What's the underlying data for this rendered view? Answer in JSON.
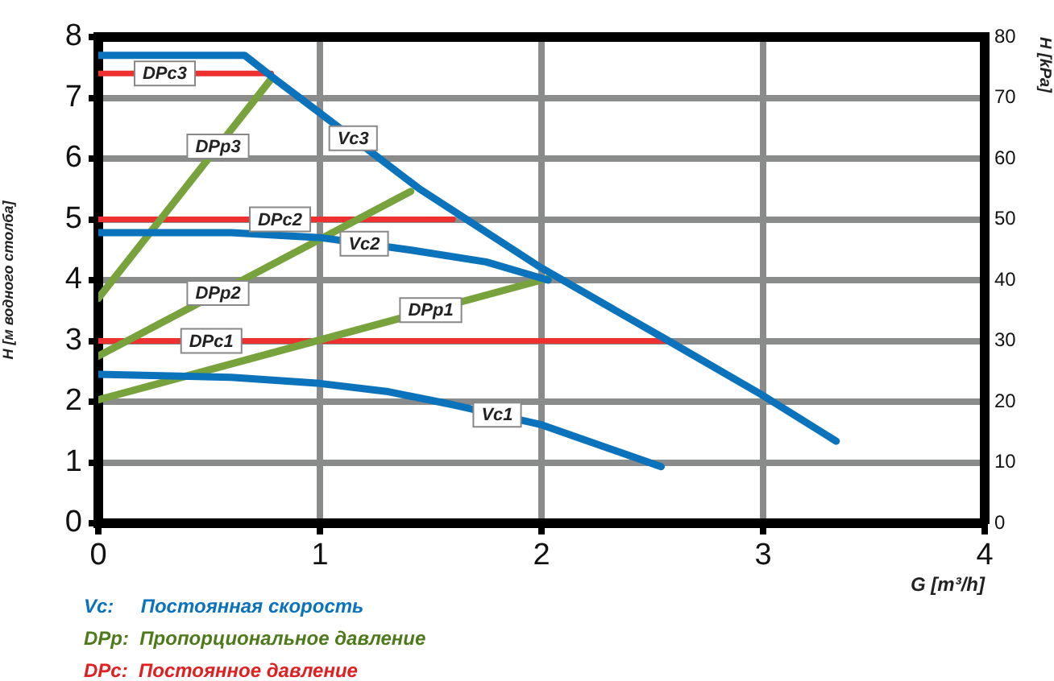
{
  "chart_data": {
    "type": "line",
    "xlabel": "G [m³/h]",
    "ylabel": "H [м водного столба]",
    "y2label": "H [kPa]",
    "xlim": [
      0,
      4
    ],
    "xticks": [
      0,
      1,
      2,
      3,
      4
    ],
    "ylim": [
      0,
      8
    ],
    "yticks": [
      0,
      1,
      2,
      3,
      4,
      5,
      6,
      7,
      8
    ],
    "y2lim": [
      0,
      80
    ],
    "y2ticks": [
      0,
      10,
      20,
      30,
      40,
      50,
      60,
      70,
      80
    ],
    "grid": true,
    "legend": false,
    "marker": "none",
    "line_style": "solid",
    "series": [
      {
        "name": "Vc1",
        "color": "#0b72bc",
        "x": [
          0,
          0.6,
          1.0,
          1.3,
          1.6,
          2.0,
          2.54
        ],
        "values": [
          2.45,
          2.4,
          2.3,
          2.17,
          1.95,
          1.62,
          0.93
        ]
      },
      {
        "name": "Vc2",
        "color": "#0b72bc",
        "x": [
          0,
          0.6,
          1.0,
          1.4,
          1.75,
          2.03
        ],
        "values": [
          4.78,
          4.78,
          4.7,
          4.5,
          4.3,
          4.0
        ]
      },
      {
        "name": "Vc3",
        "color": "#0b72bc",
        "x": [
          0,
          0.66,
          0.8,
          1.0,
          1.45,
          2.0,
          2.55,
          3.0,
          3.33
        ],
        "values": [
          7.7,
          7.7,
          7.3,
          6.75,
          5.5,
          4.2,
          3.05,
          2.1,
          1.35
        ]
      },
      {
        "name": "DPp1",
        "color": "#77a23c",
        "x": [
          0,
          2.03
        ],
        "values": [
          2.03,
          4.03
        ]
      },
      {
        "name": "DPp2",
        "color": "#77a23c",
        "x": [
          0,
          1.41
        ],
        "values": [
          2.75,
          5.46
        ]
      },
      {
        "name": "DPp3",
        "color": "#77a23c",
        "x": [
          0,
          0.78
        ],
        "values": [
          3.7,
          7.31
        ]
      },
      {
        "name": "DPc1",
        "color": "#ee3030",
        "x": [
          0,
          2.56
        ],
        "values": [
          3.0,
          3.0
        ]
      },
      {
        "name": "DPc2",
        "color": "#ee3030",
        "x": [
          0,
          1.6
        ],
        "values": [
          5.0,
          5.0
        ]
      },
      {
        "name": "DPc3",
        "color": "#ee3030",
        "x": [
          0,
          0.78
        ],
        "values": [
          7.4,
          7.4
        ]
      }
    ],
    "annotations": [
      "Vc:     Постоянная скорость",
      "DPp:  Пропорциональное давление",
      "DPc:  Постоянное давление"
    ]
  }
}
